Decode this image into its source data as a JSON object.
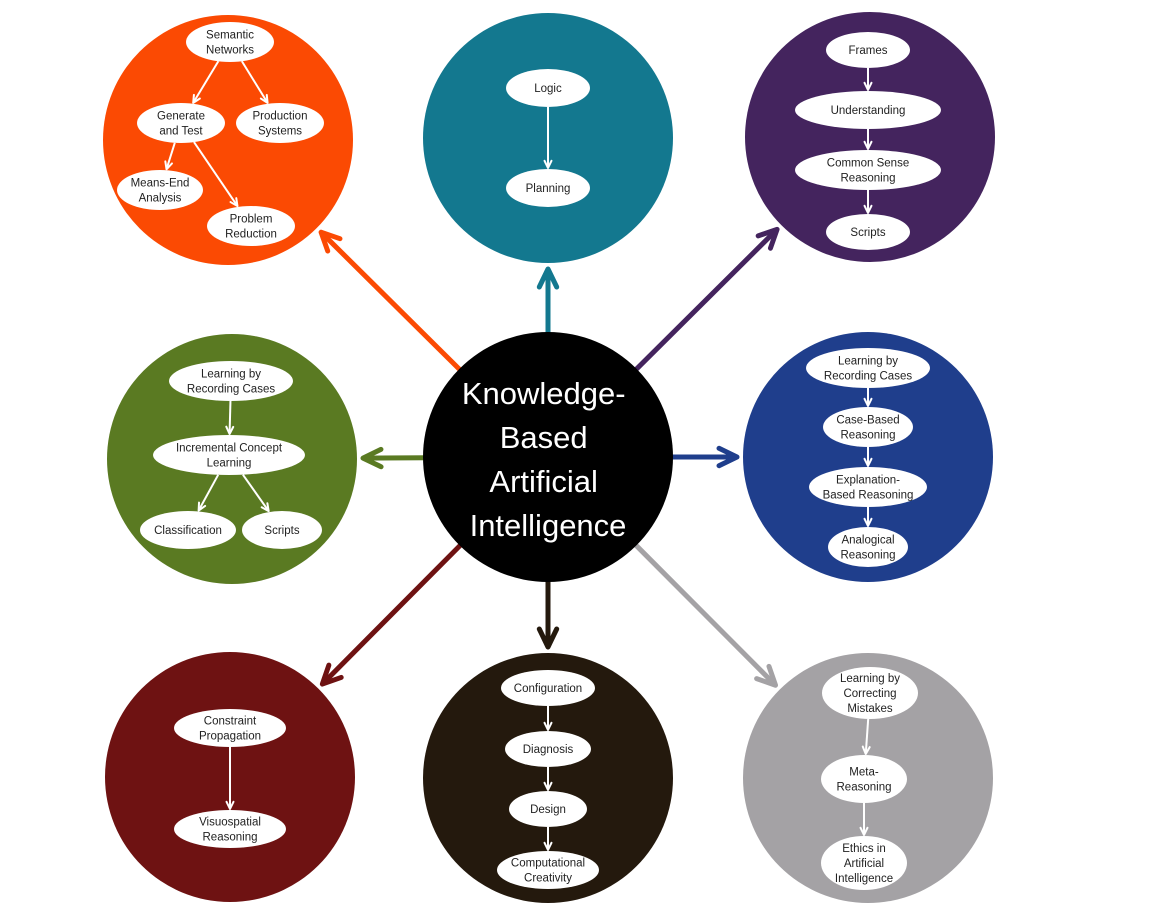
{
  "center": {
    "lines": [
      "Knowledge-",
      "Based",
      "Artificial",
      "Intelligence"
    ],
    "color": "#000000"
  },
  "clusters": [
    {
      "id": "top-left",
      "color": "#fb4a03",
      "nodes": [
        {
          "id": "semantic-networks",
          "lines": [
            "Semantic",
            "Networks"
          ]
        },
        {
          "id": "generate-and-test",
          "lines": [
            "Generate",
            "and Test"
          ]
        },
        {
          "id": "production-systems",
          "lines": [
            "Production",
            "Systems"
          ]
        },
        {
          "id": "means-end-analysis",
          "lines": [
            "Means-End",
            "Analysis"
          ]
        },
        {
          "id": "problem-reduction",
          "lines": [
            "Problem",
            "Reduction"
          ]
        }
      ]
    },
    {
      "id": "top",
      "color": "#13788f",
      "nodes": [
        {
          "id": "logic",
          "lines": [
            "Logic"
          ]
        },
        {
          "id": "planning",
          "lines": [
            "Planning"
          ]
        }
      ]
    },
    {
      "id": "top-right",
      "color": "#44245e",
      "nodes": [
        {
          "id": "frames",
          "lines": [
            "Frames"
          ]
        },
        {
          "id": "understanding",
          "lines": [
            "Understanding"
          ]
        },
        {
          "id": "common-sense-reasoning",
          "lines": [
            "Common Sense",
            "Reasoning"
          ]
        },
        {
          "id": "scripts-top",
          "lines": [
            "Scripts"
          ]
        }
      ]
    },
    {
      "id": "left",
      "color": "#5a7a22",
      "nodes": [
        {
          "id": "learning-by-recording-cases-left",
          "lines": [
            "Learning by",
            "Recording Cases"
          ]
        },
        {
          "id": "incremental-concept-learning",
          "lines": [
            "Incremental Concept",
            "Learning"
          ]
        },
        {
          "id": "classification",
          "lines": [
            "Classification"
          ]
        },
        {
          "id": "scripts-left",
          "lines": [
            "Scripts"
          ]
        }
      ]
    },
    {
      "id": "right",
      "color": "#1f3e8c",
      "nodes": [
        {
          "id": "learning-by-recording-cases-right",
          "lines": [
            "Learning by",
            "Recording Cases"
          ]
        },
        {
          "id": "case-based-reasoning",
          "lines": [
            "Case-Based",
            "Reasoning"
          ]
        },
        {
          "id": "explanation-based-reasoning",
          "lines": [
            "Explanation-",
            "Based Reasoning"
          ]
        },
        {
          "id": "analogical-reasoning",
          "lines": [
            "Analogical",
            "Reasoning"
          ]
        }
      ]
    },
    {
      "id": "bottom-left",
      "color": "#6e1212",
      "nodes": [
        {
          "id": "constraint-propagation",
          "lines": [
            "Constraint",
            "Propagation"
          ]
        },
        {
          "id": "visuospatial-reasoning",
          "lines": [
            "Visuospatial",
            "Reasoning"
          ]
        }
      ]
    },
    {
      "id": "bottom",
      "color": "#24190d",
      "nodes": [
        {
          "id": "configuration",
          "lines": [
            "Configuration"
          ]
        },
        {
          "id": "diagnosis",
          "lines": [
            "Diagnosis"
          ]
        },
        {
          "id": "design",
          "lines": [
            "Design"
          ]
        },
        {
          "id": "computational-creativity",
          "lines": [
            "Computational",
            "Creativity"
          ]
        }
      ]
    },
    {
      "id": "bottom-right",
      "color": "#a4a2a5",
      "nodes": [
        {
          "id": "learning-by-correcting-mistakes",
          "lines": [
            "Learning by",
            "Correcting",
            "Mistakes"
          ]
        },
        {
          "id": "meta-reasoning",
          "lines": [
            "Meta-",
            "Reasoning"
          ]
        },
        {
          "id": "ethics-in-ai",
          "lines": [
            "Ethics in",
            "Artificial",
            "Intelligence"
          ]
        }
      ]
    }
  ],
  "edges": [
    {
      "from": "semantic-networks",
      "to": "generate-and-test"
    },
    {
      "from": "semantic-networks",
      "to": "production-systems"
    },
    {
      "from": "generate-and-test",
      "to": "means-end-analysis"
    },
    {
      "from": "generate-and-test",
      "to": "problem-reduction"
    },
    {
      "from": "logic",
      "to": "planning"
    },
    {
      "from": "frames",
      "to": "understanding"
    },
    {
      "from": "understanding",
      "to": "common-sense-reasoning"
    },
    {
      "from": "common-sense-reasoning",
      "to": "scripts-top"
    },
    {
      "from": "learning-by-recording-cases-left",
      "to": "incremental-concept-learning"
    },
    {
      "from": "incremental-concept-learning",
      "to": "classification"
    },
    {
      "from": "incremental-concept-learning",
      "to": "scripts-left"
    },
    {
      "from": "learning-by-recording-cases-right",
      "to": "case-based-reasoning"
    },
    {
      "from": "case-based-reasoning",
      "to": "explanation-based-reasoning"
    },
    {
      "from": "explanation-based-reasoning",
      "to": "analogical-reasoning"
    },
    {
      "from": "constraint-propagation",
      "to": "visuospatial-reasoning"
    },
    {
      "from": "configuration",
      "to": "diagnosis"
    },
    {
      "from": "diagnosis",
      "to": "design"
    },
    {
      "from": "design",
      "to": "computational-creativity"
    },
    {
      "from": "learning-by-correcting-mistakes",
      "to": "meta-reasoning"
    },
    {
      "from": "meta-reasoning",
      "to": "ethics-in-ai"
    }
  ]
}
